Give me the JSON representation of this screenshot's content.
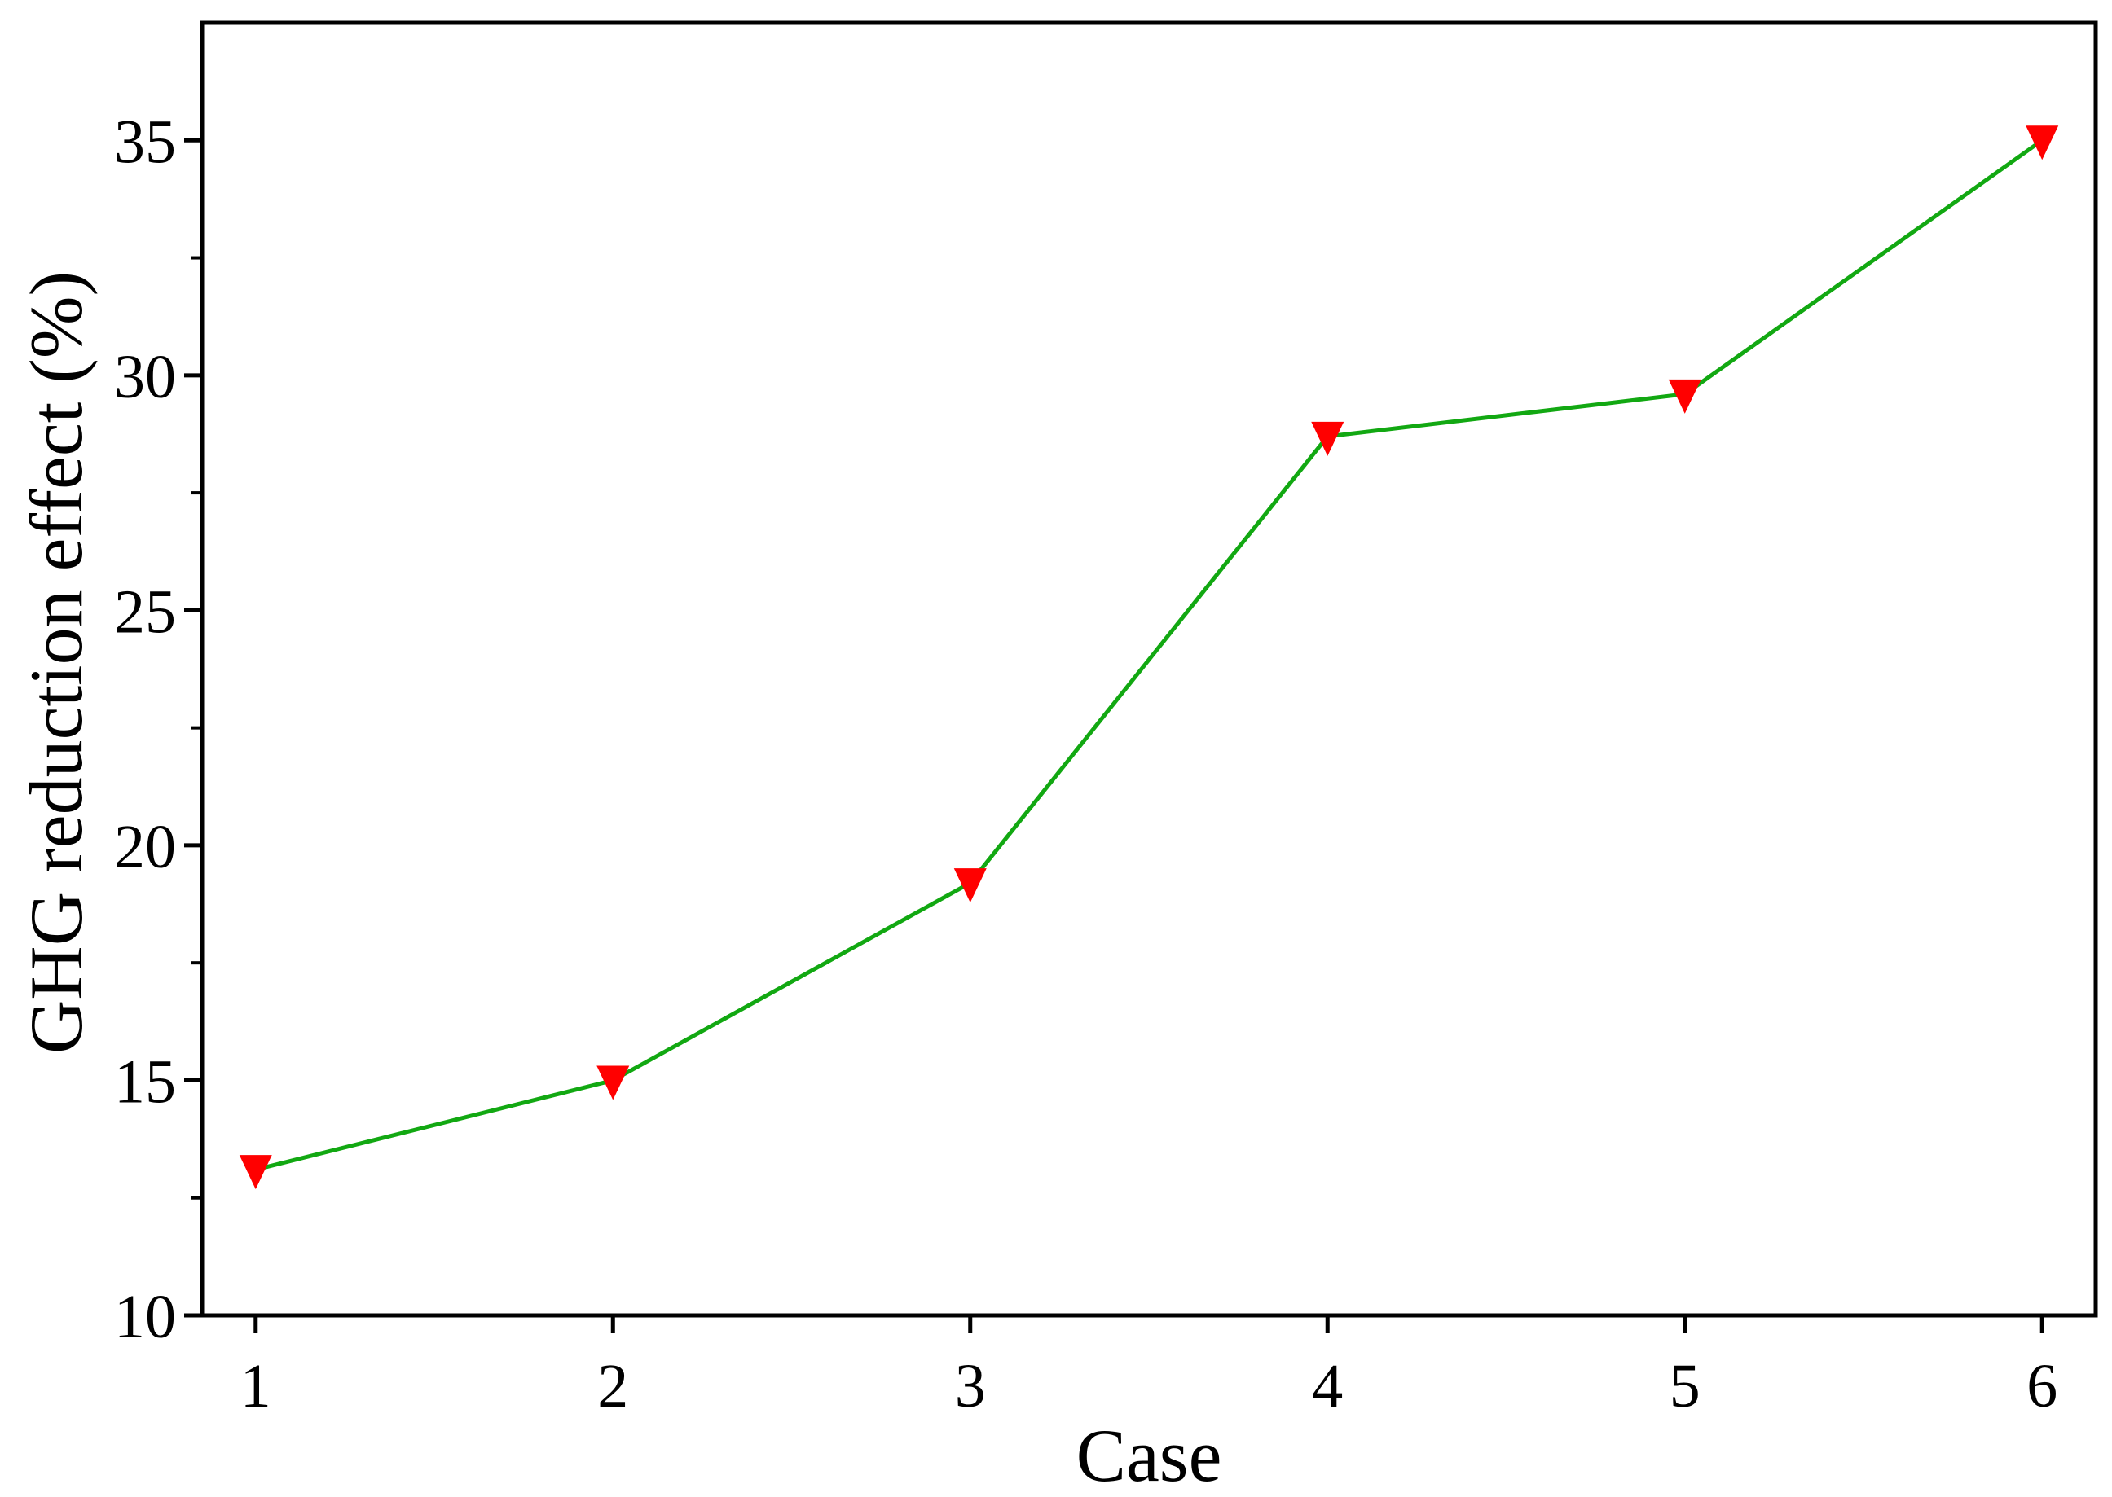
{
  "chart_data": {
    "type": "line",
    "title": "",
    "xlabel": "Case",
    "ylabel": "GHG reduction effect (%)",
    "x": [
      1,
      2,
      3,
      4,
      5,
      6
    ],
    "xticks": [
      "1",
      "2",
      "3",
      "4",
      "5",
      "6"
    ],
    "xlim": [
      0.85,
      6.15
    ],
    "ylim": [
      10,
      37.5
    ],
    "yticks": [
      "10",
      "15",
      "20",
      "25",
      "30",
      "35"
    ],
    "ytick_values": [
      10,
      15,
      20,
      25,
      30,
      35
    ],
    "grid": false,
    "series": [
      {
        "values": [
          13.1,
          15.0,
          19.2,
          28.7,
          29.6,
          35.0
        ],
        "line_color": "#12a812",
        "marker": "triangle-down",
        "marker_color": "#ff0000"
      }
    ]
  }
}
